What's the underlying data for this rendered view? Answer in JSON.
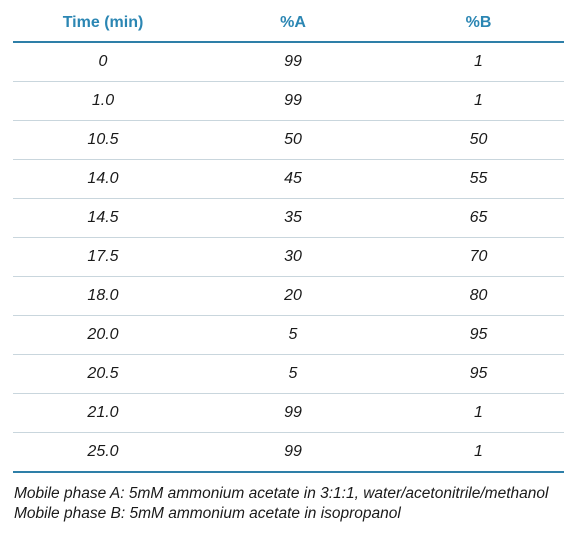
{
  "table": {
    "headers": [
      "Time (min)",
      "%A",
      "%B"
    ],
    "rows": [
      [
        "0",
        "99",
        "1"
      ],
      [
        "1.0",
        "99",
        "1"
      ],
      [
        "10.5",
        "50",
        "50"
      ],
      [
        "14.0",
        "45",
        "55"
      ],
      [
        "14.5",
        "35",
        "65"
      ],
      [
        "17.5",
        "30",
        "70"
      ],
      [
        "18.0",
        "20",
        "80"
      ],
      [
        "20.0",
        "5",
        "95"
      ],
      [
        "20.5",
        "5",
        "95"
      ],
      [
        "21.0",
        "99",
        "1"
      ],
      [
        "25.0",
        "99",
        "1"
      ]
    ]
  },
  "notes": {
    "phase_a": "Mobile phase A: 5mM ammonium acetate in 3:1:1, water/acetonitrile/methanol",
    "phase_b": "Mobile phase B: 5mM ammonium acetate in isopropanol"
  },
  "colors": {
    "header_text": "#2b86b3",
    "rule": "#2e7fa8"
  }
}
